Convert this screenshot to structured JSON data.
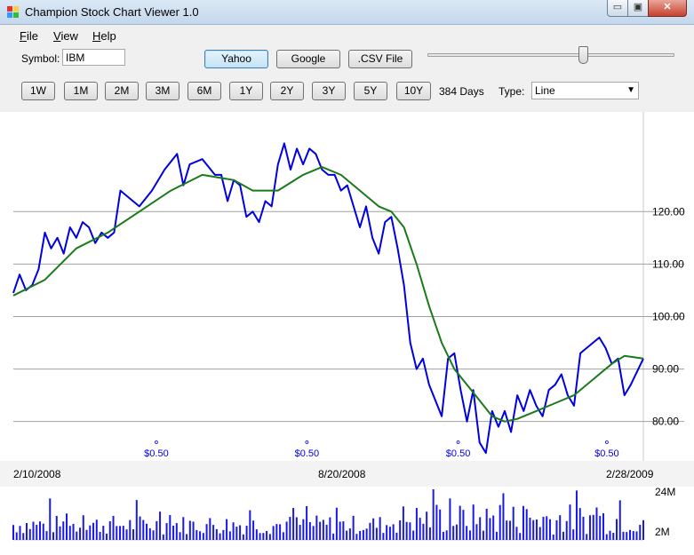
{
  "window": {
    "title": "Champion Stock Chart Viewer 1.0",
    "min_glyph": "▭",
    "max_glyph": "▣",
    "close_glyph": "✕"
  },
  "menu": {
    "items": [
      "File",
      "View",
      "Help"
    ]
  },
  "toolbar": {
    "symbol_label": "Symbol:",
    "symbol_value": "IBM",
    "sources": [
      {
        "label": "Yahoo",
        "active": true
      },
      {
        "label": "Google",
        "active": false
      },
      {
        "label": ".CSV File",
        "active": false
      }
    ],
    "slider_value_fraction": 0.64
  },
  "ranges": {
    "buttons": [
      "1W",
      "1M",
      "2M",
      "3M",
      "6M",
      "1Y",
      "2Y",
      "3Y",
      "5Y",
      "10Y"
    ],
    "days_label": "384 Days",
    "type_label": "Type:",
    "type_value": "Line",
    "type_arrow": "▼"
  },
  "colors": {
    "price": "#0000e0",
    "moving_average": "#1a7a1a",
    "volume": "#1a1ae6",
    "grid": "#a0a0a0"
  },
  "chart_data": {
    "type": "line",
    "x_labels": [
      "2/10/2008",
      "8/20/2008",
      "2/28/2009"
    ],
    "y_ticks": [
      "120.00",
      "110.00",
      "100.00",
      "90.00",
      "80.00"
    ],
    "y_tick_values": [
      120,
      110,
      100,
      90,
      80
    ],
    "ylim": [
      72.5,
      139
    ],
    "dividend_markers": [
      {
        "t": 0.227,
        "label": "$0.50"
      },
      {
        "t": 0.466,
        "label": "$0.50"
      },
      {
        "t": 0.706,
        "label": "$0.50"
      },
      {
        "t": 0.942,
        "label": "$0.50"
      }
    ],
    "series": [
      {
        "name": "Price",
        "points": [
          [
            0,
            104.5
          ],
          [
            0.01,
            108
          ],
          [
            0.02,
            105
          ],
          [
            0.03,
            106
          ],
          [
            0.04,
            109
          ],
          [
            0.05,
            116
          ],
          [
            0.06,
            113
          ],
          [
            0.07,
            115
          ],
          [
            0.08,
            112
          ],
          [
            0.09,
            117
          ],
          [
            0.1,
            115
          ],
          [
            0.11,
            118
          ],
          [
            0.12,
            117
          ],
          [
            0.13,
            114
          ],
          [
            0.14,
            116
          ],
          [
            0.15,
            115
          ],
          [
            0.16,
            116
          ],
          [
            0.17,
            124
          ],
          [
            0.18,
            123
          ],
          [
            0.2,
            121
          ],
          [
            0.22,
            124
          ],
          [
            0.24,
            128
          ],
          [
            0.26,
            131
          ],
          [
            0.27,
            125
          ],
          [
            0.28,
            129
          ],
          [
            0.3,
            130
          ],
          [
            0.32,
            127
          ],
          [
            0.33,
            127
          ],
          [
            0.34,
            122
          ],
          [
            0.35,
            126
          ],
          [
            0.36,
            125
          ],
          [
            0.37,
            119
          ],
          [
            0.38,
            120
          ],
          [
            0.39,
            118
          ],
          [
            0.4,
            122
          ],
          [
            0.41,
            121
          ],
          [
            0.42,
            129
          ],
          [
            0.43,
            133
          ],
          [
            0.44,
            128
          ],
          [
            0.45,
            132
          ],
          [
            0.46,
            129
          ],
          [
            0.47,
            132
          ],
          [
            0.48,
            131
          ],
          [
            0.49,
            128
          ],
          [
            0.5,
            127
          ],
          [
            0.51,
            127
          ],
          [
            0.52,
            124
          ],
          [
            0.53,
            125
          ],
          [
            0.54,
            121
          ],
          [
            0.55,
            117
          ],
          [
            0.56,
            121
          ],
          [
            0.57,
            115
          ],
          [
            0.58,
            112
          ],
          [
            0.59,
            118
          ],
          [
            0.6,
            119
          ],
          [
            0.61,
            113
          ],
          [
            0.62,
            106
          ],
          [
            0.63,
            95
          ],
          [
            0.64,
            90
          ],
          [
            0.65,
            92
          ],
          [
            0.66,
            87
          ],
          [
            0.67,
            84
          ],
          [
            0.68,
            81
          ],
          [
            0.69,
            92
          ],
          [
            0.7,
            93
          ],
          [
            0.71,
            86
          ],
          [
            0.72,
            80
          ],
          [
            0.73,
            86
          ],
          [
            0.74,
            76
          ],
          [
            0.75,
            74
          ],
          [
            0.76,
            82
          ],
          [
            0.77,
            79
          ],
          [
            0.78,
            82
          ],
          [
            0.79,
            78
          ],
          [
            0.8,
            85
          ],
          [
            0.81,
            82
          ],
          [
            0.82,
            86
          ],
          [
            0.83,
            83
          ],
          [
            0.84,
            81
          ],
          [
            0.85,
            86
          ],
          [
            0.86,
            87
          ],
          [
            0.87,
            89
          ],
          [
            0.88,
            85
          ],
          [
            0.89,
            83
          ],
          [
            0.9,
            93
          ],
          [
            0.91,
            94
          ],
          [
            0.92,
            95
          ],
          [
            0.93,
            96
          ],
          [
            0.94,
            94
          ],
          [
            0.95,
            91
          ],
          [
            0.96,
            92
          ],
          [
            0.97,
            85
          ],
          [
            0.98,
            87
          ],
          [
            1.0,
            92
          ]
        ]
      },
      {
        "name": "Moving Average",
        "points": [
          [
            0,
            104
          ],
          [
            0.05,
            107
          ],
          [
            0.1,
            113
          ],
          [
            0.15,
            116
          ],
          [
            0.2,
            120
          ],
          [
            0.25,
            124
          ],
          [
            0.3,
            127
          ],
          [
            0.35,
            126
          ],
          [
            0.38,
            124
          ],
          [
            0.42,
            124
          ],
          [
            0.46,
            127
          ],
          [
            0.49,
            128.5
          ],
          [
            0.52,
            127
          ],
          [
            0.55,
            124
          ],
          [
            0.58,
            121
          ],
          [
            0.6,
            120
          ],
          [
            0.62,
            117
          ],
          [
            0.64,
            110
          ],
          [
            0.66,
            102
          ],
          [
            0.68,
            95
          ],
          [
            0.7,
            90
          ],
          [
            0.72,
            87
          ],
          [
            0.74,
            84
          ],
          [
            0.76,
            81
          ],
          [
            0.78,
            80
          ],
          [
            0.8,
            80.5
          ],
          [
            0.83,
            82
          ],
          [
            0.86,
            83.5
          ],
          [
            0.89,
            85
          ],
          [
            0.92,
            88
          ],
          [
            0.95,
            91
          ],
          [
            0.97,
            92.5
          ],
          [
            1.0,
            92
          ]
        ]
      }
    ],
    "volume": {
      "top_label": "24M",
      "bottom_label": "2M",
      "ylim": [
        2,
        24
      ]
    }
  }
}
